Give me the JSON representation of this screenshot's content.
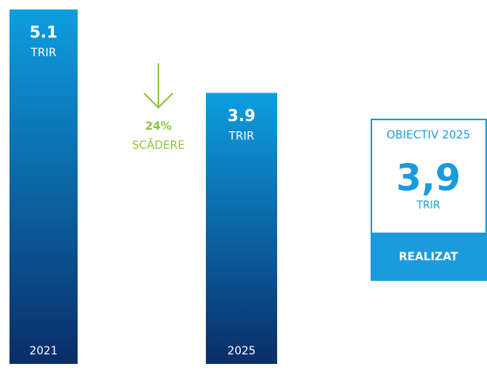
{
  "chart_data": {
    "type": "bar",
    "categories": [
      "2021",
      "2025"
    ],
    "values": [
      5.1,
      3.9
    ],
    "unit": "TRIR",
    "colors": {
      "top": "#0c9ee0",
      "bottom": "#0a2d69"
    },
    "annotation": {
      "change": 24,
      "change_label": "24%",
      "text": "SCĂDERE",
      "color": "#8cc63f"
    },
    "target": {
      "title": "OBIECTIV 2025",
      "value": 3.9,
      "value_label": "3,9",
      "unit": "TRIR",
      "status": "REALIZAT",
      "color": "#1a9bdc"
    }
  }
}
